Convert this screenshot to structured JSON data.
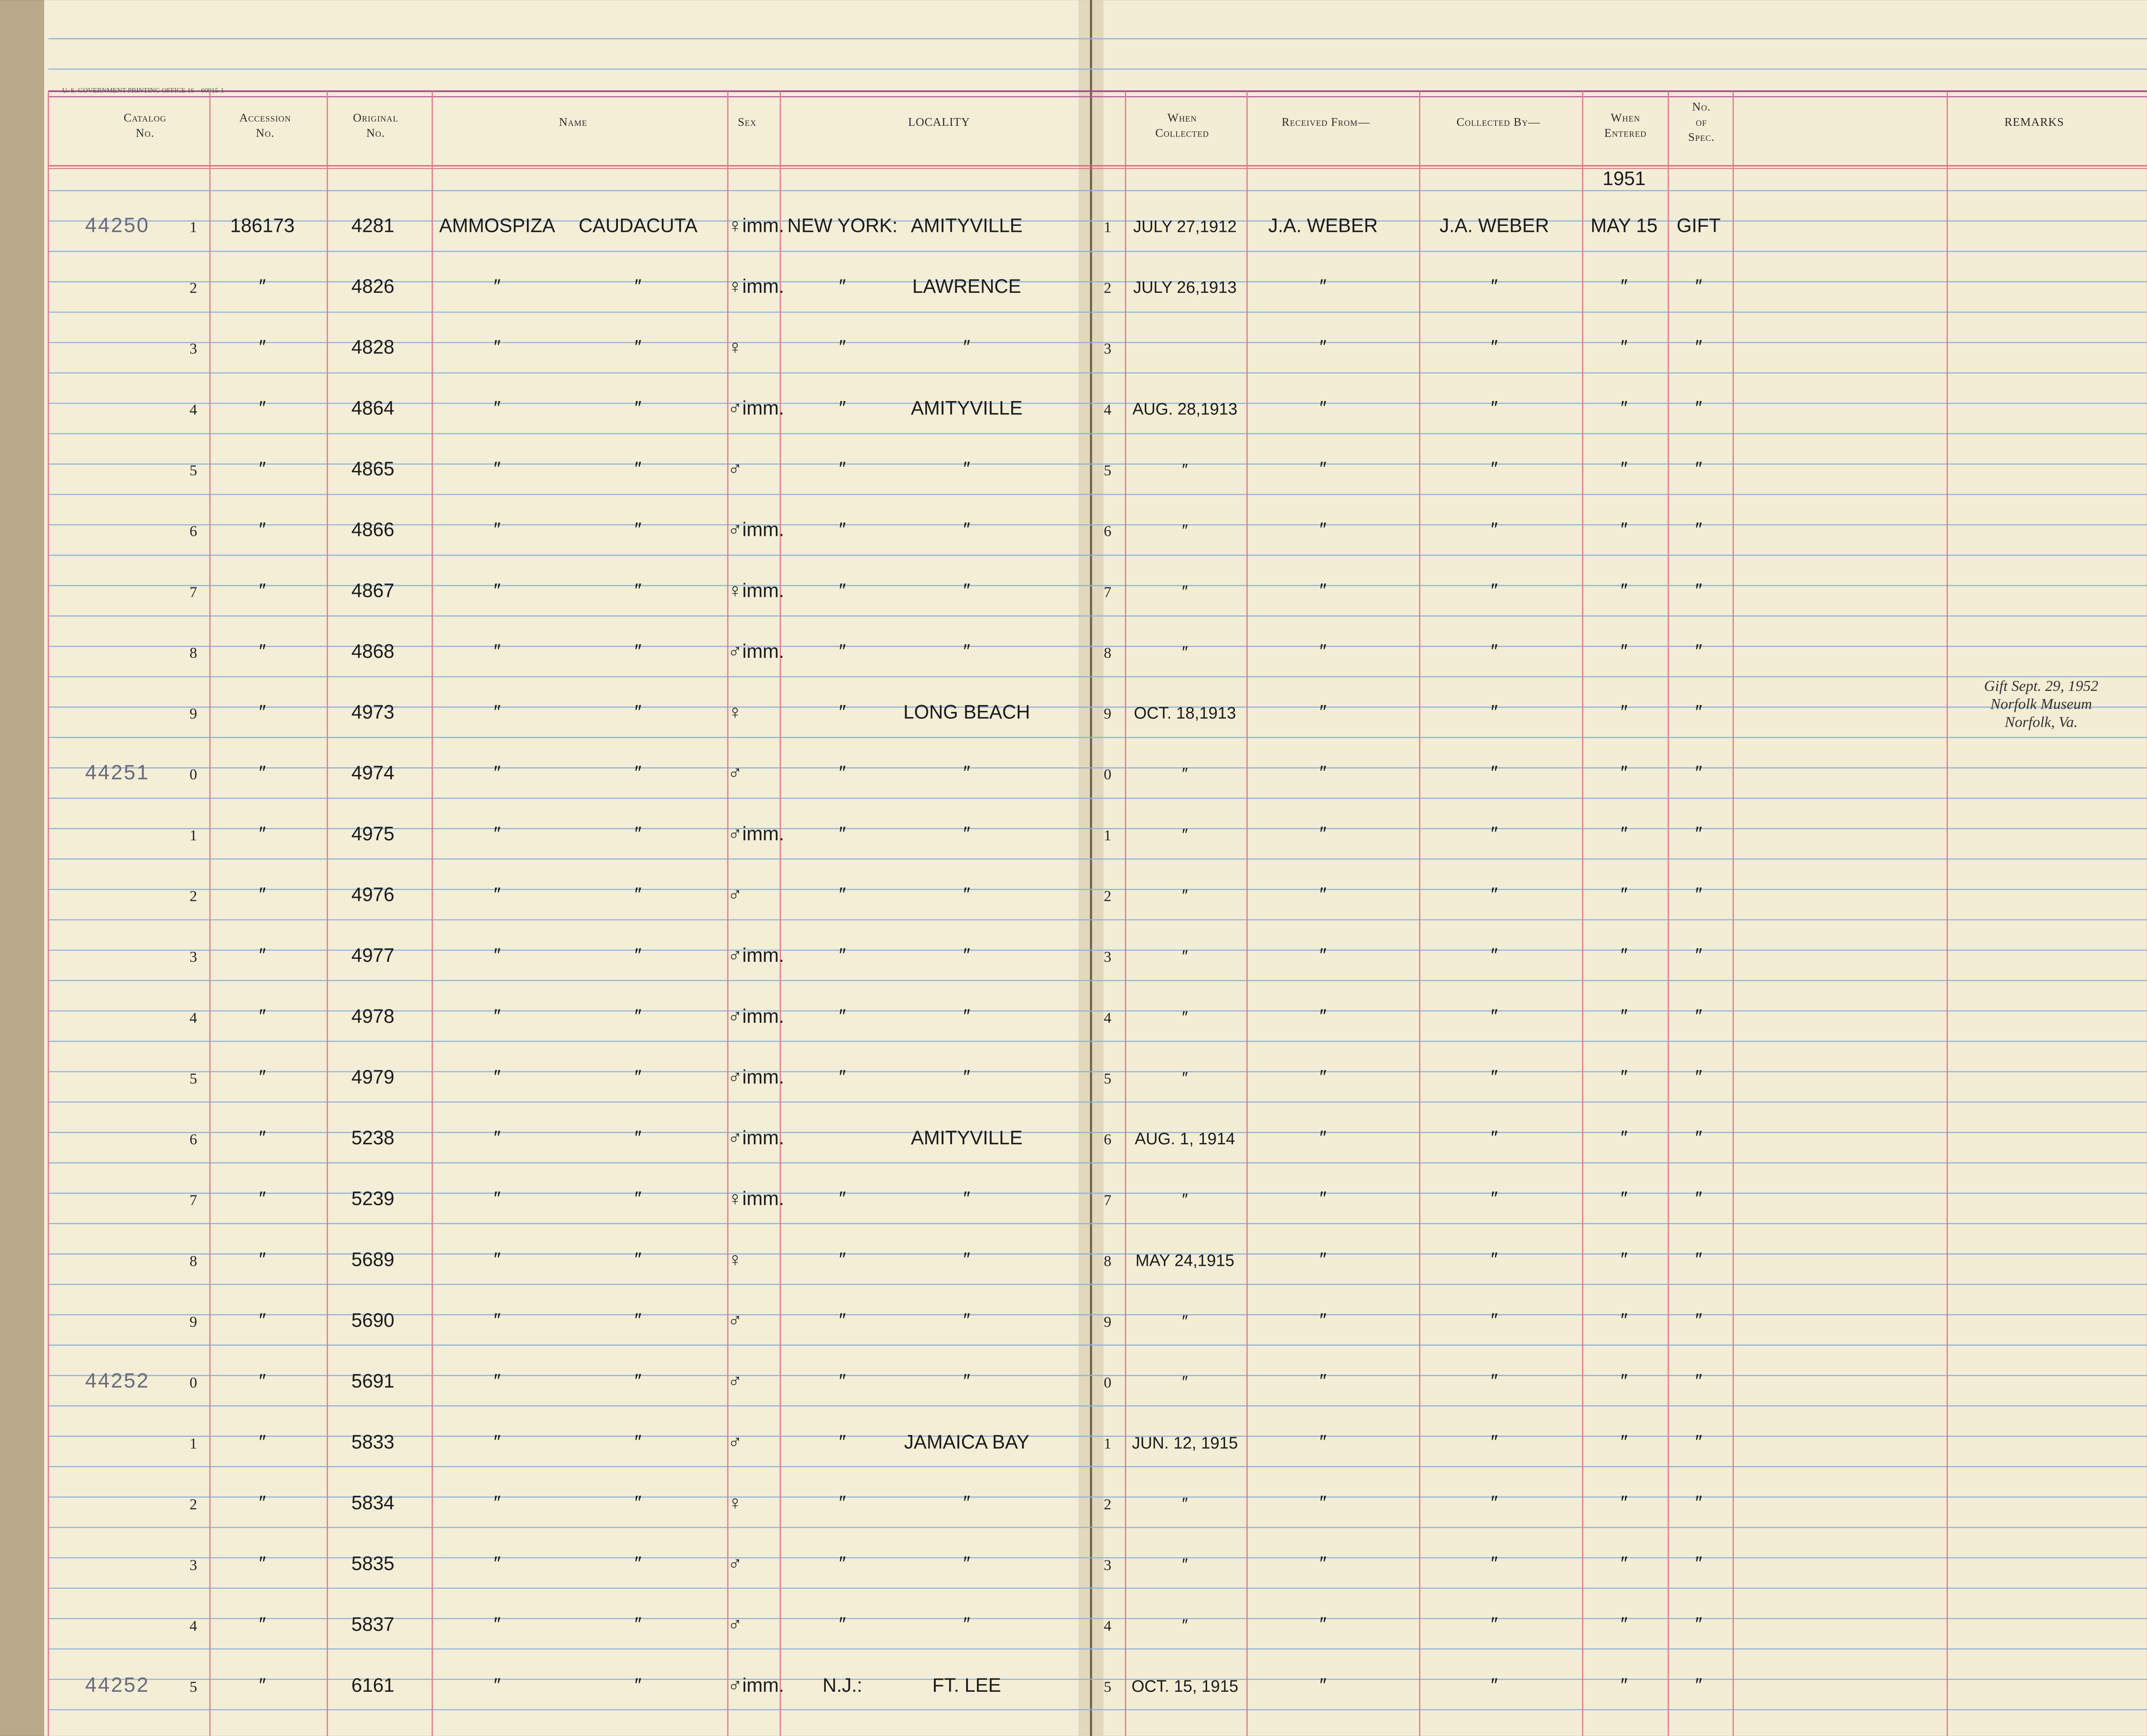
{
  "printer": "U. S. GOVERNMENT PRINTING OFFICE   16—60915-1",
  "header": {
    "columns": [
      [
        "Catalog",
        "No."
      ],
      [
        "Accession",
        "No."
      ],
      [
        "Original",
        "No."
      ],
      [
        "Name"
      ],
      [
        "Sex"
      ],
      [
        "LOCALITY"
      ],
      [
        "When",
        "Collected"
      ],
      [
        "Received From—"
      ],
      [
        "Collected By—"
      ],
      [
        "When",
        "Entered"
      ],
      [
        "No.",
        "of",
        "Spec."
      ],
      [
        "REMARKS"
      ]
    ],
    "entered_year": "1951"
  },
  "rows": [
    {
      "cells": [
        "44250",
        "1",
        "186173",
        "4281",
        "AMMOSPIZA",
        "CAUDACUTA",
        "♀imm.",
        "NEW YORK:",
        "AMITYVILLE",
        "1",
        "JULY 27,1912",
        "J.A. WEBER",
        "J.A. WEBER",
        "MAY 15",
        "GIFT"
      ]
    },
    {
      "cells": [
        null,
        "2",
        "″",
        "4826",
        "″",
        "″",
        "♀imm.",
        "″",
        "LAWRENCE",
        "2",
        "JULY 26,1913",
        "″",
        "″",
        "″",
        "″"
      ]
    },
    {
      "cells": [
        null,
        "3",
        "″",
        "4828",
        "″",
        "″",
        "♀",
        "″",
        "″",
        "3",
        null,
        "″",
        "″",
        "″",
        "″"
      ]
    },
    {
      "cells": [
        null,
        "4",
        "″",
        "4864",
        "″",
        "″",
        "♂imm.",
        "″",
        "AMITYVILLE",
        "4",
        "AUG. 28,1913",
        "″",
        "″",
        "″",
        "″"
      ]
    },
    {
      "cells": [
        null,
        "5",
        "″",
        "4865",
        "″",
        "″",
        "♂",
        "″",
        "″",
        "5",
        "″",
        "″",
        "″",
        "″",
        "″"
      ]
    },
    {
      "cells": [
        null,
        "6",
        "″",
        "4866",
        "″",
        "″",
        "♂imm.",
        "″",
        "″",
        "6",
        "″",
        "″",
        "″",
        "″",
        "″"
      ]
    },
    {
      "cells": [
        null,
        "7",
        "″",
        "4867",
        "″",
        "″",
        "♀imm.",
        "″",
        "″",
        "7",
        "″",
        "″",
        "″",
        "″",
        "″"
      ]
    },
    {
      "cells": [
        null,
        "8",
        "″",
        "4868",
        "″",
        "″",
        "♂imm.",
        "″",
        "″",
        "8",
        "″",
        "″",
        "″",
        "″",
        "″"
      ]
    },
    {
      "cells": [
        null,
        "9",
        "″",
        "4973",
        "″",
        "″",
        "♀",
        "″",
        "LONG BEACH",
        "9",
        "OCT. 18,1913",
        "″",
        "″",
        "″",
        "″"
      ],
      "remarks": [
        "Gift Sept. 29, 1952",
        "Norfolk Museum",
        "Norfolk, Va."
      ]
    },
    {
      "cells": [
        "44251",
        "0",
        "″",
        "4974",
        "″",
        "″",
        "♂",
        "″",
        "″",
        "0",
        "″",
        "″",
        "″",
        "″",
        "″"
      ]
    },
    {
      "cells": [
        null,
        "1",
        "″",
        "4975",
        "″",
        "″",
        "♂imm.",
        "″",
        "″",
        "1",
        "″",
        "″",
        "″",
        "″",
        "″"
      ]
    },
    {
      "cells": [
        null,
        "2",
        "″",
        "4976",
        "″",
        "″",
        "♂",
        "″",
        "″",
        "2",
        "″",
        "″",
        "″",
        "″",
        "″"
      ]
    },
    {
      "cells": [
        null,
        "3",
        "″",
        "4977",
        "″",
        "″",
        "♂imm.",
        "″",
        "″",
        "3",
        "″",
        "″",
        "″",
        "″",
        "″"
      ]
    },
    {
      "cells": [
        null,
        "4",
        "″",
        "4978",
        "″",
        "″",
        "♂imm.",
        "″",
        "″",
        "4",
        "″",
        "″",
        "″",
        "″",
        "″"
      ]
    },
    {
      "cells": [
        null,
        "5",
        "″",
        "4979",
        "″",
        "″",
        "♂imm.",
        "″",
        "″",
        "5",
        "″",
        "″",
        "″",
        "″",
        "″"
      ]
    },
    {
      "cells": [
        null,
        "6",
        "″",
        "5238",
        "″",
        "″",
        "♂imm.",
        null,
        "AMITYVILLE",
        "6",
        "AUG. 1, 1914",
        "″",
        "″",
        "″",
        "″"
      ]
    },
    {
      "cells": [
        null,
        "7",
        "″",
        "5239",
        "″",
        "″",
        "♀imm.",
        "″",
        "″",
        "7",
        "″",
        "″",
        "″",
        "″",
        "″"
      ]
    },
    {
      "cells": [
        null,
        "8",
        "″",
        "5689",
        "″",
        "″",
        "♀",
        "″",
        "″",
        "8",
        "MAY 24,1915",
        "″",
        "″",
        "″",
        "″"
      ]
    },
    {
      "cells": [
        null,
        "9",
        "″",
        "5690",
        "″",
        "″",
        "♂",
        "″",
        "″",
        "9",
        "″",
        "″",
        "″",
        "″",
        "″"
      ]
    },
    {
      "cells": [
        "44252",
        "0",
        "″",
        "5691",
        "″",
        "″",
        "♂",
        "″",
        "″",
        "0",
        "″",
        "″",
        "″",
        "″",
        "″"
      ]
    },
    {
      "cells": [
        null,
        "1",
        "″",
        "5833",
        "″",
        "″",
        "♂",
        "″",
        "JAMAICA BAY",
        "1",
        "JUN. 12, 1915",
        "″",
        "″",
        "″",
        "″"
      ]
    },
    {
      "cells": [
        null,
        "2",
        "″",
        "5834",
        "″",
        "″",
        "♀",
        "″",
        "″",
        "2",
        "″",
        "″",
        "″",
        "″",
        "″"
      ]
    },
    {
      "cells": [
        null,
        "3",
        "″",
        "5835",
        "″",
        "″",
        "♂",
        "″",
        "″",
        "3",
        "″",
        "″",
        "″",
        "″",
        "″"
      ]
    },
    {
      "cells": [
        null,
        "4",
        "″",
        "5837",
        "″",
        "″",
        "♂",
        "″",
        "″",
        "4",
        "″",
        "″",
        "″",
        "″",
        "″"
      ]
    },
    {
      "cells": [
        "44252",
        "5",
        "″",
        "6161",
        "″",
        "″",
        "♂imm.",
        "N.J.:",
        "FT. LEE",
        "5",
        "OCT. 15, 1915",
        "″",
        "″",
        "″",
        "″"
      ]
    }
  ]
}
